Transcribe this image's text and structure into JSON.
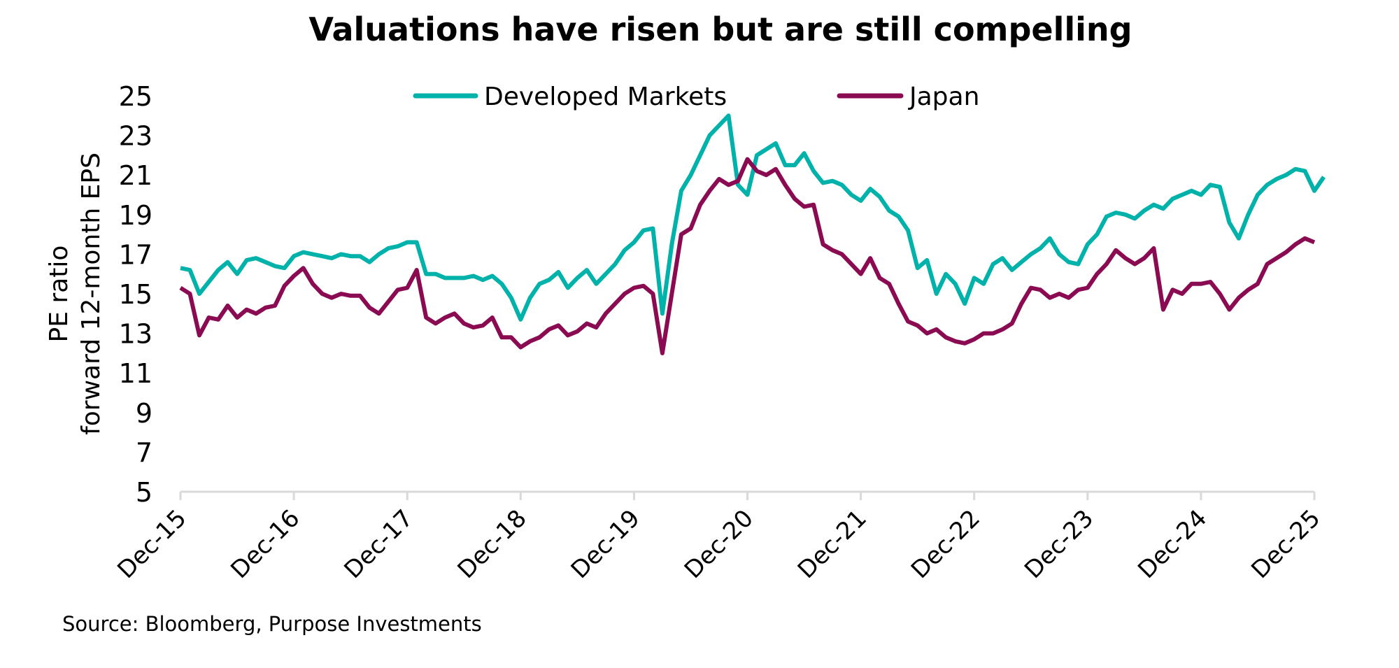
{
  "chart_data": {
    "type": "line",
    "title": "Valuations have risen but are still compelling",
    "ylabel": [
      "PE ratio",
      "forward 12-month EPS"
    ],
    "xlabel": "",
    "ylim": [
      5,
      25
    ],
    "yticks": [
      5,
      7,
      9,
      11,
      13,
      15,
      17,
      19,
      21,
      23,
      25
    ],
    "xticks": [
      "Dec-15",
      "Dec-16",
      "Dec-17",
      "Dec-18",
      "Dec-19",
      "Dec-20",
      "Dec-21",
      "Dec-22",
      "Dec-23",
      "Dec-24",
      "Dec-25"
    ],
    "grid": false,
    "legend_position": "top",
    "source": "Source: Bloomberg, Purpose Investments",
    "x_start": "2015-12",
    "x_frequency": "monthly",
    "series": [
      {
        "name": "Developed Markets",
        "color": "#00B2A9",
        "values": [
          16.3,
          16.2,
          15.0,
          15.6,
          16.2,
          16.6,
          16.0,
          16.7,
          16.8,
          16.6,
          16.4,
          16.3,
          16.9,
          17.1,
          17.0,
          16.9,
          16.8,
          17.0,
          16.9,
          16.9,
          16.6,
          17.0,
          17.3,
          17.4,
          17.6,
          17.6,
          16.0,
          16.0,
          15.8,
          15.8,
          15.8,
          15.9,
          15.7,
          15.9,
          15.5,
          14.8,
          13.7,
          14.8,
          15.5,
          15.7,
          16.1,
          15.3,
          15.8,
          16.2,
          15.5,
          16.0,
          16.5,
          17.2,
          17.6,
          18.2,
          18.3,
          14.0,
          17.5,
          20.2,
          21.0,
          22.0,
          23.0,
          23.5,
          24.0,
          20.5,
          20.0,
          22.0,
          22.3,
          22.6,
          21.5,
          21.5,
          22.1,
          21.2,
          20.6,
          20.7,
          20.5,
          20.0,
          19.7,
          20.3,
          19.9,
          19.2,
          18.9,
          18.2,
          16.3,
          16.7,
          15.0,
          16.0,
          15.5,
          14.5,
          15.8,
          15.5,
          16.5,
          16.8,
          16.2,
          16.6,
          17.0,
          17.3,
          17.8,
          17.0,
          16.6,
          16.5,
          17.5,
          18.0,
          18.9,
          19.1,
          19.0,
          18.8,
          19.2,
          19.5,
          19.3,
          19.8,
          20.0,
          20.2,
          20.0,
          20.5,
          20.4,
          18.6,
          17.8,
          19.0,
          20.0,
          20.5,
          20.8,
          21.0,
          21.3,
          21.2,
          20.2,
          20.9
        ]
      },
      {
        "name": "Japan",
        "color": "#8A0B52",
        "values": [
          15.3,
          15.0,
          12.9,
          13.8,
          13.7,
          14.4,
          13.8,
          14.2,
          14.0,
          14.3,
          14.4,
          15.4,
          15.9,
          16.3,
          15.5,
          15.0,
          14.8,
          15.0,
          14.9,
          14.9,
          14.3,
          14.0,
          14.6,
          15.2,
          15.3,
          16.2,
          13.8,
          13.5,
          13.8,
          14.0,
          13.5,
          13.3,
          13.4,
          13.8,
          12.8,
          12.8,
          12.3,
          12.6,
          12.8,
          13.2,
          13.4,
          12.9,
          13.1,
          13.5,
          13.3,
          14.0,
          14.5,
          15.0,
          15.3,
          15.4,
          15.0,
          12.0,
          15.0,
          18.0,
          18.3,
          19.5,
          20.2,
          20.8,
          20.5,
          20.7,
          21.8,
          21.2,
          21.0,
          21.3,
          20.5,
          19.8,
          19.4,
          19.5,
          17.5,
          17.2,
          17.0,
          16.5,
          16.0,
          16.8,
          15.8,
          15.5,
          14.5,
          13.6,
          13.4,
          13.0,
          13.2,
          12.8,
          12.6,
          12.5,
          12.7,
          13.0,
          13.0,
          13.2,
          13.5,
          14.5,
          15.3,
          15.2,
          14.8,
          15.0,
          14.8,
          15.2,
          15.3,
          16.0,
          16.5,
          17.2,
          16.8,
          16.5,
          16.8,
          17.3,
          14.2,
          15.2,
          15.0,
          15.5,
          15.5,
          15.6,
          15.0,
          14.2,
          14.8,
          15.2,
          15.5,
          16.5,
          16.8,
          17.1,
          17.5,
          17.8,
          17.6
        ]
      }
    ]
  }
}
